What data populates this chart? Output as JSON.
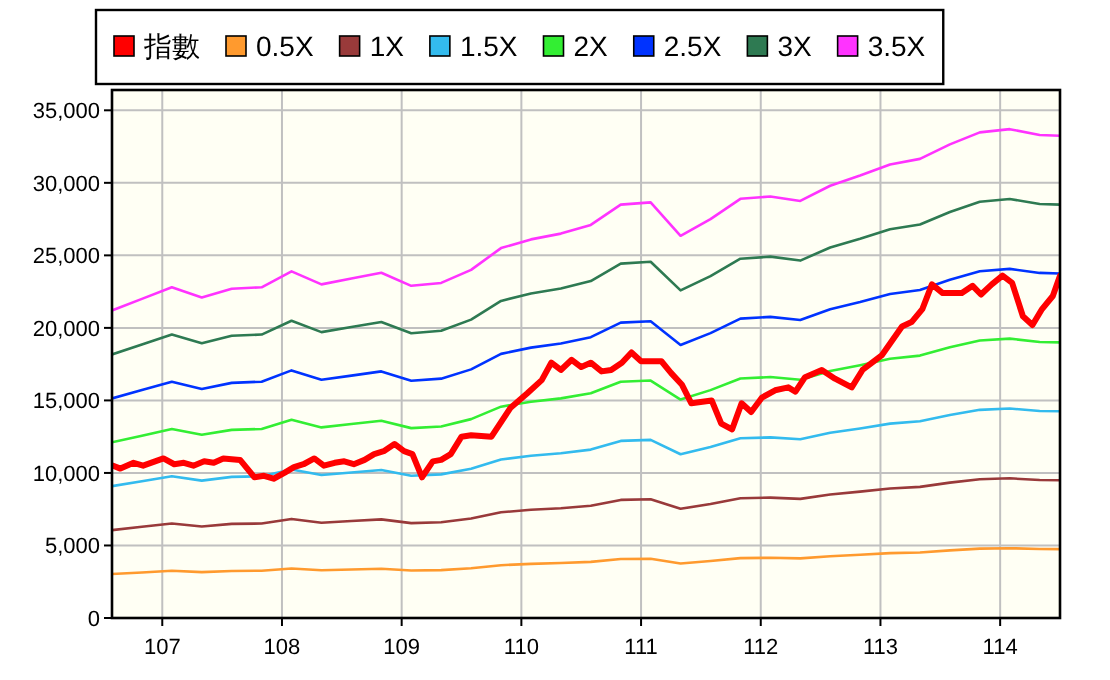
{
  "chart_data": {
    "type": "line",
    "legend": "top",
    "grid": true,
    "xlim": [
      106.58,
      114.5
    ],
    "xticks": [
      107,
      108,
      109,
      110,
      111,
      112,
      113,
      114
    ],
    "ylim": [
      0,
      36400
    ],
    "yticks": [
      0,
      {
        "value": 5000,
        "label": "5,000"
      },
      {
        "value": 10000,
        "label": "10,000"
      },
      {
        "value": 15000,
        "label": "15,000"
      },
      {
        "value": 20000,
        "label": "20,000"
      },
      {
        "value": 25000,
        "label": "25,000"
      },
      {
        "value": 30000,
        "label": "30,000"
      },
      {
        "value": 35000,
        "label": "35,000"
      }
    ],
    "x": [
      106.58,
      106.83,
      107.08,
      107.33,
      107.58,
      107.83,
      108.08,
      108.33,
      108.58,
      108.83,
      109.08,
      109.33,
      109.58,
      109.83,
      110.08,
      110.33,
      110.58,
      110.83,
      111.08,
      111.33,
      111.58,
      111.83,
      112.08,
      112.33,
      112.58,
      112.83,
      113.08,
      113.33,
      113.58,
      113.83,
      114.08,
      114.33,
      114.5
    ],
    "series": [
      {
        "name": "指數",
        "color": "#ff0000",
        "x": [
          106.59,
          106.65,
          106.76,
          106.84,
          107.01,
          107.1,
          107.18,
          107.26,
          107.35,
          107.43,
          107.51,
          107.65,
          107.77,
          107.85,
          107.93,
          108.02,
          108.1,
          108.18,
          108.27,
          108.35,
          108.44,
          108.52,
          108.6,
          108.69,
          108.77,
          108.85,
          108.94,
          109.02,
          109.09,
          109.17,
          109.26,
          109.33,
          109.41,
          109.5,
          109.58,
          109.75,
          109.91,
          110.05,
          110.17,
          110.25,
          110.33,
          110.42,
          110.5,
          110.58,
          110.67,
          110.75,
          110.84,
          110.92,
          111.0,
          111.17,
          111.25,
          111.34,
          111.42,
          111.59,
          111.67,
          111.76,
          111.84,
          111.92,
          112.01,
          112.12,
          112.23,
          112.29,
          112.37,
          112.51,
          112.62,
          112.76,
          112.85,
          112.93,
          113.01,
          113.18,
          113.26,
          113.35,
          113.43,
          113.52,
          113.68,
          113.77,
          113.84,
          113.93,
          114.02,
          114.1,
          114.19,
          114.27,
          114.35,
          114.44,
          114.5
        ],
        "values": [
          10500,
          10300,
          10700,
          10500,
          11000,
          10600,
          10700,
          10500,
          10800,
          10700,
          11000,
          10900,
          9700,
          9800,
          9600,
          10000,
          10400,
          10600,
          11000,
          10500,
          10700,
          10800,
          10600,
          10900,
          11300,
          11500,
          12000,
          11500,
          11300,
          9700,
          10800,
          10900,
          11300,
          12500,
          12600,
          12500,
          14500,
          15500,
          16400,
          17600,
          17100,
          17800,
          17300,
          17600,
          17000,
          17100,
          17600,
          18300,
          17700,
          17700,
          16900,
          16100,
          14800,
          15000,
          13400,
          13000,
          14800,
          14200,
          15200,
          15700,
          15900,
          15600,
          16600,
          17100,
          16500,
          15900,
          17100,
          17600,
          18100,
          20100,
          20400,
          21300,
          23000,
          22400,
          22400,
          22900,
          22300,
          23000,
          23600,
          23100,
          20800,
          20200,
          21300,
          22200,
          23600
        ]
      },
      {
        "name": "0.5X",
        "color": "#ff9a2e",
        "values": [
          3030,
          3140,
          3260,
          3160,
          3240,
          3260,
          3410,
          3290,
          3340,
          3400,
          3270,
          3300,
          3430,
          3640,
          3730,
          3790,
          3870,
          4070,
          4090,
          3760,
          3930,
          4130,
          4150,
          4110,
          4260,
          4360,
          4470,
          4520,
          4660,
          4780,
          4810,
          4760,
          4750
        ]
      },
      {
        "name": "1X",
        "color": "#993a3a",
        "values": [
          6060,
          6290,
          6510,
          6310,
          6490,
          6510,
          6830,
          6570,
          6690,
          6800,
          6540,
          6600,
          6860,
          7290,
          7460,
          7570,
          7740,
          8140,
          8190,
          7530,
          7860,
          8260,
          8300,
          8210,
          8510,
          8710,
          8930,
          9040,
          9330,
          9570,
          9630,
          9510,
          9500
        ]
      },
      {
        "name": "1.5X",
        "color": "#33bbee",
        "values": [
          9090,
          9430,
          9770,
          9470,
          9730,
          9770,
          10240,
          9860,
          10030,
          10200,
          9810,
          9900,
          10290,
          10930,
          11190,
          11360,
          11610,
          12210,
          12280,
          11290,
          11790,
          12390,
          12450,
          12320,
          12770,
          13070,
          13400,
          13560,
          13990,
          14350,
          14440,
          14270,
          14250
        ]
      },
      {
        "name": "2X",
        "color": "#33ee33",
        "values": [
          12110,
          12570,
          13030,
          12630,
          12970,
          13030,
          13660,
          13140,
          13370,
          13600,
          13090,
          13200,
          13710,
          14570,
          14910,
          15140,
          15490,
          16290,
          16370,
          15060,
          15710,
          16510,
          16610,
          16430,
          17030,
          17430,
          17870,
          18090,
          18660,
          19130,
          19260,
          19030,
          19000
        ]
      },
      {
        "name": "2.5X",
        "color": "#0033ff",
        "values": [
          15140,
          15710,
          16290,
          15790,
          16210,
          16290,
          17070,
          16430,
          16710,
          17000,
          16360,
          16500,
          17140,
          18210,
          18640,
          18930,
          19360,
          20360,
          20460,
          18820,
          19640,
          20640,
          20760,
          20540,
          21290,
          21790,
          22340,
          22610,
          23320,
          23910,
          24070,
          23790,
          23750
        ]
      },
      {
        "name": "3X",
        "color": "#2e7a52",
        "values": [
          18170,
          18860,
          19540,
          18940,
          19460,
          19540,
          20490,
          19710,
          20060,
          20400,
          19630,
          19800,
          20570,
          21860,
          22370,
          22710,
          23230,
          24430,
          24560,
          22590,
          23570,
          24770,
          24910,
          24640,
          25540,
          26140,
          26800,
          27130,
          27990,
          28700,
          28890,
          28540,
          28500
        ]
      },
      {
        "name": "3.5X",
        "color": "#ff33ff",
        "values": [
          21200,
          22000,
          22800,
          22100,
          22700,
          22800,
          23900,
          23000,
          23400,
          23800,
          22900,
          23100,
          24000,
          25500,
          26100,
          26500,
          27100,
          28500,
          28650,
          26350,
          27500,
          28900,
          29060,
          28750,
          29800,
          30500,
          31270,
          31650,
          32650,
          33480,
          33700,
          33300,
          33250
        ]
      }
    ]
  }
}
